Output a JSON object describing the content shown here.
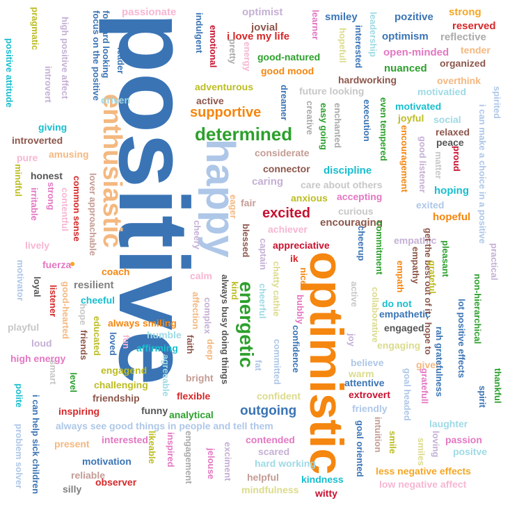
{
  "words": [
    {
      "text": "positive",
      "color": "#3a74b5"
    },
    {
      "text": "optimistic",
      "color": "#f5860f"
    },
    {
      "text": "happy",
      "color": "#aec7e8"
    },
    {
      "text": "enthusiastic",
      "color": "#f4b880"
    },
    {
      "text": "energetic",
      "color": "#2ca02c"
    },
    {
      "text": "determined",
      "color": "#2ca02c"
    },
    {
      "text": "supportive",
      "color": "#f5860f"
    },
    {
      "text": "excited",
      "color": "#c8102e"
    },
    {
      "text": "outgoing",
      "color": "#3a74b5"
    },
    {
      "text": "passionate",
      "color": "#f7b6d2"
    },
    {
      "text": "optimist",
      "color": "#c5b0d5"
    },
    {
      "text": "pozitive",
      "color": "#3a74b5"
    },
    {
      "text": "strong",
      "color": "#f5a623"
    },
    {
      "text": "reserved",
      "color": "#d62728"
    },
    {
      "text": "reflective",
      "color": "#aaaaaa"
    },
    {
      "text": "tender",
      "color": "#f4b880"
    },
    {
      "text": "organized",
      "color": "#8c564b"
    },
    {
      "text": "smiley",
      "color": "#3a74b5"
    },
    {
      "text": "jovial",
      "color": "#8c564b"
    },
    {
      "text": "i love my life",
      "color": "#d62728"
    },
    {
      "text": "good-natured",
      "color": "#2ca02c"
    },
    {
      "text": "good mood",
      "color": "#f5860f"
    },
    {
      "text": "optimism",
      "color": "#3a74b5"
    },
    {
      "text": "open-minded",
      "color": "#e377c2"
    },
    {
      "text": "nuanced",
      "color": "#2ca02c"
    },
    {
      "text": "hardworking",
      "color": "#8c564b"
    },
    {
      "text": "overthink",
      "color": "#f4b880"
    },
    {
      "text": "motivatied",
      "color": "#9edae5"
    },
    {
      "text": "adventurous",
      "color": "#bcbd22"
    },
    {
      "text": "active",
      "color": "#8c564b"
    },
    {
      "text": "future looking",
      "color": "#c7c7c7"
    },
    {
      "text": "driven",
      "color": "#9edae5"
    },
    {
      "text": "motivated",
      "color": "#17becf"
    },
    {
      "text": "joyful",
      "color": "#bcbd22"
    },
    {
      "text": "social",
      "color": "#9edae5"
    },
    {
      "text": "relaxed",
      "color": "#8c564b"
    },
    {
      "text": "peace",
      "color": "#555555"
    },
    {
      "text": "considerate",
      "color": "#c49c94"
    },
    {
      "text": "connector",
      "color": "#8c564b"
    },
    {
      "text": "discipline",
      "color": "#17becf"
    },
    {
      "text": "caring",
      "color": "#c5b0d5"
    },
    {
      "text": "care about others",
      "color": "#c7c7c7"
    },
    {
      "text": "hoping",
      "color": "#17becf"
    },
    {
      "text": "anxious",
      "color": "#bcbd22"
    },
    {
      "text": "accepting",
      "color": "#e377c2"
    },
    {
      "text": "exited",
      "color": "#aec7e8"
    },
    {
      "text": "curious",
      "color": "#c7c7c7"
    },
    {
      "text": "hopeful",
      "color": "#f5860f"
    },
    {
      "text": "achiever",
      "color": "#f7b6d2"
    },
    {
      "text": "encouraging",
      "color": "#8c564b"
    },
    {
      "text": "empathic",
      "color": "#c5b0d5"
    },
    {
      "text": "appreciative",
      "color": "#c8102e"
    },
    {
      "text": "resilient",
      "color": "#7f7f7f"
    },
    {
      "text": "coach",
      "color": "#f5860f"
    },
    {
      "text": "fuerza",
      "color": "#e377c2"
    },
    {
      "text": "calm",
      "color": "#f7b6d2"
    },
    {
      "text": "cheeful",
      "color": "#17becf"
    },
    {
      "text": "always smiling",
      "color": "#f5860f"
    },
    {
      "text": "humble",
      "color": "#9edae5"
    },
    {
      "text": "affirming",
      "color": "#17becf"
    },
    {
      "text": "playful",
      "color": "#c7c7c7"
    },
    {
      "text": "loud",
      "color": "#c5b0d5"
    },
    {
      "text": "high energy",
      "color": "#e377c2"
    },
    {
      "text": "engagend",
      "color": "#bcbd22"
    },
    {
      "text": "challenging",
      "color": "#bcbd22"
    },
    {
      "text": "friendship",
      "color": "#8c564b"
    },
    {
      "text": "funny",
      "color": "#555555"
    },
    {
      "text": "bright",
      "color": "#c49c94"
    },
    {
      "text": "flexible",
      "color": "#d62728"
    },
    {
      "text": "analytical",
      "color": "#2ca02c"
    },
    {
      "text": "inspiring",
      "color": "#d62728"
    },
    {
      "text": "confident",
      "color": "#dbdb8d"
    },
    {
      "text": "always see good things in people and tell them",
      "color": "#aec7e8"
    },
    {
      "text": "present",
      "color": "#f4b880"
    },
    {
      "text": "interested",
      "color": "#e377c2"
    },
    {
      "text": "contended",
      "color": "#e377c2"
    },
    {
      "text": "scared",
      "color": "#c5b0d5"
    },
    {
      "text": "hard working",
      "color": "#9edae5"
    },
    {
      "text": "motivation",
      "color": "#3a74b5"
    },
    {
      "text": "reliable",
      "color": "#c49c94"
    },
    {
      "text": "observer",
      "color": "#d62728"
    },
    {
      "text": "silly",
      "color": "#7f7f7f"
    },
    {
      "text": "helpful",
      "color": "#c49c94"
    },
    {
      "text": "kindness",
      "color": "#17becf"
    },
    {
      "text": "mindfulness",
      "color": "#dbdb8d"
    },
    {
      "text": "witty",
      "color": "#c8102e"
    },
    {
      "text": "less negative effects",
      "color": "#f5a623"
    },
    {
      "text": "low negative affect",
      "color": "#f7b6d2"
    },
    {
      "text": "passion",
      "color": "#e377c2"
    },
    {
      "text": "positve",
      "color": "#9edae5"
    },
    {
      "text": "laughter",
      "color": "#9edae5"
    },
    {
      "text": "attentive",
      "color": "#3a74b5"
    },
    {
      "text": "extrovert",
      "color": "#c8102e"
    },
    {
      "text": "friendly",
      "color": "#aec7e8"
    },
    {
      "text": "believe",
      "color": "#aec7e8"
    },
    {
      "text": "warm",
      "color": "#dbdb8d"
    },
    {
      "text": "giver",
      "color": "#f4b880"
    },
    {
      "text": "engaging",
      "color": "#dbdb8d"
    },
    {
      "text": "engaged",
      "color": "#555555"
    },
    {
      "text": "empathetic",
      "color": "#3a74b5"
    },
    {
      "text": "do not",
      "color": "#17becf"
    },
    {
      "text": "collaborative",
      "color": "#dbdb8d"
    },
    {
      "text": "ik",
      "color": "#d62728"
    },
    {
      "text": "nice",
      "color": "#f5860f"
    },
    {
      "text": "fair",
      "color": "#c49c94"
    },
    {
      "text": "lively",
      "color": "#f7b6d2"
    },
    {
      "text": "honest",
      "color": "#555555"
    },
    {
      "text": "pure",
      "color": "#f7b6d2"
    },
    {
      "text": "amusing",
      "color": "#f4b880"
    },
    {
      "text": "giving",
      "color": "#17becf"
    },
    {
      "text": "introverted",
      "color": "#8c564b"
    },
    {
      "text": "leadership",
      "color": "#9edae5"
    },
    {
      "text": "learner",
      "color": "#e377c2"
    },
    {
      "text": "indulgent",
      "color": "#3a74b5"
    },
    {
      "text": "emotional",
      "color": "#c8102e"
    },
    {
      "text": "pretty",
      "color": "#aaaaaa"
    },
    {
      "text": "energy",
      "color": "#f7b6d2"
    },
    {
      "text": "hopefull",
      "color": "#dbdb8d"
    },
    {
      "text": "interested",
      "color": "#3a74b5"
    },
    {
      "text": "leader",
      "color": "#3a74b5"
    },
    {
      "text": "introvert",
      "color": "#c5b0d5"
    },
    {
      "text": "dreamer",
      "color": "#3a74b5"
    },
    {
      "text": "enchanted",
      "color": "#aaaaaa"
    },
    {
      "text": "execution",
      "color": "#3a74b5"
    },
    {
      "text": "even tempered",
      "color": "#2ca02c"
    },
    {
      "text": "easy going",
      "color": "#2ca02c"
    },
    {
      "text": "creative",
      "color": "#aaaaaa"
    },
    {
      "text": "encouragement",
      "color": "#f5860f"
    },
    {
      "text": "good listener",
      "color": "#c5b0d5"
    },
    {
      "text": "matter",
      "color": "#c7c7c7"
    },
    {
      "text": "proud",
      "color": "#c8102e"
    },
    {
      "text": "i can make a choice in a positive",
      "color": "#aec7e8"
    },
    {
      "text": "spirited",
      "color": "#aec7e8"
    },
    {
      "text": "focus on the positive",
      "color": "#3a74b5"
    },
    {
      "text": "forward looking",
      "color": "#3a74b5"
    },
    {
      "text": "high positive affect",
      "color": "#c5b0d5"
    },
    {
      "text": "pragmatic",
      "color": "#bcbd22"
    },
    {
      "text": "positive attitude",
      "color": "#17becf"
    },
    {
      "text": "mindful",
      "color": "#bcbd22"
    },
    {
      "text": "strong",
      "color": "#e377c2"
    },
    {
      "text": "irritable",
      "color": "#e377c2"
    },
    {
      "text": "contentful",
      "color": "#f7b6d2"
    },
    {
      "text": "common sense",
      "color": "#d62728"
    },
    {
      "text": "lover approachable",
      "color": "#c49c94"
    },
    {
      "text": "cheery",
      "color": "#c5b0d5"
    },
    {
      "text": "eager",
      "color": "#f4b880"
    },
    {
      "text": "blessed",
      "color": "#8c564b"
    },
    {
      "text": "captain",
      "color": "#c5b0d5"
    },
    {
      "text": "chatty cathie",
      "color": "#dbdb8d"
    },
    {
      "text": "cheerup",
      "color": "#3a74b5"
    },
    {
      "text": "commitment",
      "color": "#2ca02c"
    },
    {
      "text": "get the best out of it - hope to",
      "color": "#8c564b"
    },
    {
      "text": "pleasant",
      "color": "#2ca02c"
    },
    {
      "text": "empathy",
      "color": "#8c564b"
    },
    {
      "text": "empath",
      "color": "#f5860f"
    },
    {
      "text": "grateful",
      "color": "#bcbd22"
    },
    {
      "text": "practical",
      "color": "#c5b0d5"
    },
    {
      "text": "non-hierarchical",
      "color": "#2ca02c"
    },
    {
      "text": "lot positive effects",
      "color": "#3a74b5"
    },
    {
      "text": "rah gratefulness",
      "color": "#3a74b5"
    },
    {
      "text": "thankful",
      "color": "#2ca02c"
    },
    {
      "text": "spirit",
      "color": "#3a74b5"
    },
    {
      "text": "smiles",
      "color": "#dbdb8d"
    },
    {
      "text": "gratefull",
      "color": "#e377c2"
    },
    {
      "text": "goal headed",
      "color": "#aec7e8"
    },
    {
      "text": "loving",
      "color": "#c5b0d5"
    },
    {
      "text": "motivator",
      "color": "#aec7e8"
    },
    {
      "text": "loyal",
      "color": "#555555"
    },
    {
      "text": "listener",
      "color": "#d62728"
    },
    {
      "text": "good-hearted",
      "color": "#f4b880"
    },
    {
      "text": "hope",
      "color": "#c7c7c7"
    },
    {
      "text": "friends",
      "color": "#8c564b"
    },
    {
      "text": "educated",
      "color": "#bcbd22"
    },
    {
      "text": "loved",
      "color": "#3a74b5"
    },
    {
      "text": "fun",
      "color": "#f7b6d2"
    },
    {
      "text": "smart",
      "color": "#c7c7c7"
    },
    {
      "text": "level",
      "color": "#2ca02c"
    },
    {
      "text": "polite",
      "color": "#17becf"
    },
    {
      "text": "i can help sick children",
      "color": "#3a74b5"
    },
    {
      "text": "problem solver",
      "color": "#aec7e8"
    },
    {
      "text": "agreeable",
      "color": "#9edae5"
    },
    {
      "text": "likeable",
      "color": "#bcbd22"
    },
    {
      "text": "inspired",
      "color": "#e377c2"
    },
    {
      "text": "engagement",
      "color": "#aaaaaa"
    },
    {
      "text": "jelouse",
      "color": "#e377c2"
    },
    {
      "text": "exciment",
      "color": "#c5b0d5"
    },
    {
      "text": "always busy doing things",
      "color": "#555555"
    },
    {
      "text": "kind",
      "color": "#bcbd22"
    },
    {
      "text": "complex",
      "color": "#c5b0d5"
    },
    {
      "text": "affection",
      "color": "#f4b880"
    },
    {
      "text": "faith",
      "color": "#8c564b"
    },
    {
      "text": "deep",
      "color": "#f4b880"
    },
    {
      "text": "cheerful",
      "color": "#9edae5"
    },
    {
      "text": "committed",
      "color": "#aec7e8"
    },
    {
      "text": "fat",
      "color": "#aec7e8"
    },
    {
      "text": "bubbly",
      "color": "#e377c2"
    },
    {
      "text": "confidence",
      "color": "#3a74b5"
    },
    {
      "text": "active",
      "color": "#c7c7c7"
    },
    {
      "text": "joy",
      "color": "#c5b0d5"
    },
    {
      "text": "goal oriented",
      "color": "#3a74b5"
    },
    {
      "text": "intuition",
      "color": "#c49c94"
    },
    {
      "text": "smile",
      "color": "#bcbd22"
    }
  ]
}
